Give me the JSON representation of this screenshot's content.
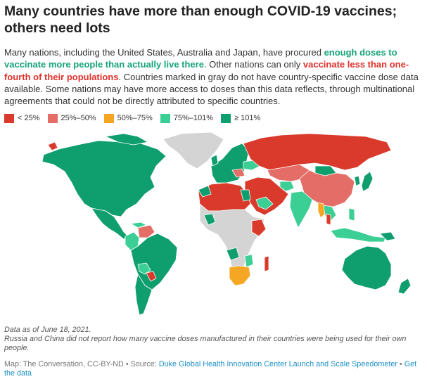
{
  "title_lines": [
    "Many countries have more than enough COVID-19 vaccines;",
    "others need lots"
  ],
  "description": {
    "part1": "Many nations, including the United States, Australia and Japan, have procured ",
    "highlight_green": "enough doses to vaccinate more people than actually live there",
    "part2": ". Other nations can only ",
    "highlight_red": "vaccinate less than one-fourth of their populations",
    "part3": ". Countries marked in gray do not have country-specific vaccine dose data available. Some nations may have more access to doses than this data reflects, through multinational agreements that could not be directly attributed to specific countries."
  },
  "legend": [
    {
      "label": "< 25%",
      "color": "#d93a2b"
    },
    {
      "label": "25%–50%",
      "color": "#e46d67"
    },
    {
      "label": "50%–75%",
      "color": "#f5a623"
    },
    {
      "label": "75%–101%",
      "color": "#3ccf95"
    },
    {
      "label": "≥ 101%",
      "color": "#0f9e6e"
    }
  ],
  "colors": {
    "no_data": "#d4d4d4",
    "border": "#ffffff",
    "green_text": "#16a37a",
    "red_text": "#e0312b"
  },
  "notes": {
    "line1": "Data as of June 18, 2021.",
    "line2": "Russia and China did not report how many vaccine doses manufactured in their countries were being used for their own people."
  },
  "source": {
    "prefix": "Map: The Conversation, CC-BY-ND • Source: ",
    "link1": "Duke Global Health Innovation Center Launch and Scale Speedometer",
    "separator": " • ",
    "link2": "Get the data"
  },
  "map_regions": [
    {
      "name": "North America",
      "band": "≥ 101%"
    },
    {
      "name": "Greenland",
      "band": "no data"
    },
    {
      "name": "Central America",
      "band": "≥ 101%"
    },
    {
      "name": "Venezuela",
      "band": "25%–50%"
    },
    {
      "name": "Colombia",
      "band": "75%–101%"
    },
    {
      "name": "Brazil",
      "band": "≥ 101%"
    },
    {
      "name": "Paraguay",
      "band": "< 25%"
    },
    {
      "name": "Bolivia",
      "band": "75%–101%"
    },
    {
      "name": "Europe",
      "band": "≥ 101%"
    },
    {
      "name": "Russia",
      "band": "< 25%"
    },
    {
      "name": "China",
      "band": "25%–50%"
    },
    {
      "name": "Kazakhstan",
      "band": "25%–50%"
    },
    {
      "name": "Middle East",
      "band": "< 25%"
    },
    {
      "name": "India",
      "band": "75%–101%"
    },
    {
      "name": "Myanmar",
      "band": "50%–75%"
    },
    {
      "name": "Southeast Asia",
      "band": "75%–101%"
    },
    {
      "name": "Japan",
      "band": "≥ 101%"
    },
    {
      "name": "Australia",
      "band": "≥ 101%"
    },
    {
      "name": "New Zealand",
      "band": "≥ 101%"
    },
    {
      "name": "North Africa",
      "band": "< 25%"
    },
    {
      "name": "Central Africa",
      "band": "no data"
    },
    {
      "name": "South Africa",
      "band": "50%–75%"
    }
  ]
}
